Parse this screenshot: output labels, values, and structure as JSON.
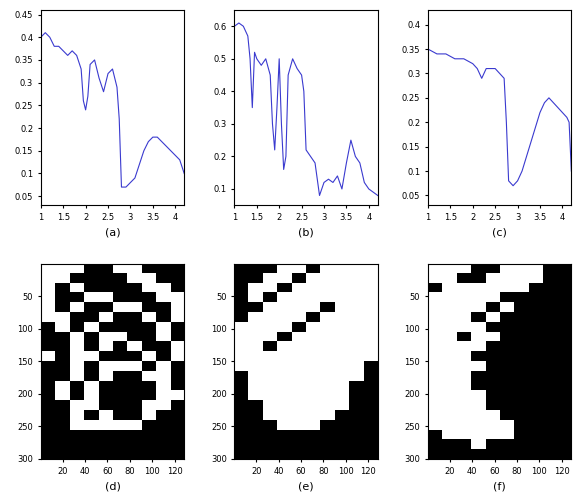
{
  "chart_data": [
    {
      "type": "line",
      "xlabel": "(a)",
      "color": "#3a3acf",
      "x": [
        1.0,
        1.1,
        1.2,
        1.3,
        1.4,
        1.5,
        1.6,
        1.7,
        1.8,
        1.9,
        1.95,
        2.0,
        2.05,
        2.1,
        2.2,
        2.3,
        2.4,
        2.5,
        2.6,
        2.7,
        2.75,
        2.8,
        2.9,
        3.0,
        3.1,
        3.2,
        3.3,
        3.4,
        3.5,
        3.6,
        3.7,
        3.8,
        3.9,
        4.0,
        4.1,
        4.2
      ],
      "values": [
        0.4,
        0.41,
        0.4,
        0.38,
        0.38,
        0.37,
        0.36,
        0.37,
        0.36,
        0.33,
        0.26,
        0.24,
        0.27,
        0.34,
        0.35,
        0.31,
        0.28,
        0.32,
        0.33,
        0.29,
        0.22,
        0.07,
        0.07,
        0.08,
        0.09,
        0.12,
        0.15,
        0.17,
        0.18,
        0.18,
        0.17,
        0.16,
        0.15,
        0.14,
        0.13,
        0.1
      ],
      "xlim": [
        1,
        4.2
      ],
      "xticks": [
        1,
        1.5,
        2,
        2.5,
        3,
        3.5,
        4
      ],
      "ylim": [
        0.03,
        0.46
      ],
      "yticks": [
        0.05,
        0.1,
        0.15,
        0.2,
        0.25,
        0.3,
        0.35,
        0.4,
        0.45
      ]
    },
    {
      "type": "line",
      "xlabel": "(b)",
      "color": "#3a3acf",
      "x": [
        1.0,
        1.1,
        1.2,
        1.3,
        1.35,
        1.4,
        1.45,
        1.5,
        1.6,
        1.7,
        1.8,
        1.85,
        1.9,
        1.95,
        2.0,
        2.05,
        2.1,
        2.15,
        2.2,
        2.3,
        2.4,
        2.5,
        2.55,
        2.6,
        2.7,
        2.8,
        2.9,
        3.0,
        3.1,
        3.2,
        3.3,
        3.4,
        3.5,
        3.6,
        3.7,
        3.8,
        3.9,
        4.0,
        4.1,
        4.2
      ],
      "values": [
        0.6,
        0.61,
        0.6,
        0.57,
        0.5,
        0.35,
        0.52,
        0.5,
        0.48,
        0.5,
        0.45,
        0.3,
        0.22,
        0.35,
        0.5,
        0.3,
        0.16,
        0.2,
        0.45,
        0.5,
        0.47,
        0.45,
        0.4,
        0.22,
        0.2,
        0.18,
        0.08,
        0.12,
        0.13,
        0.12,
        0.14,
        0.1,
        0.18,
        0.25,
        0.2,
        0.18,
        0.12,
        0.1,
        0.09,
        0.08
      ],
      "xlim": [
        1,
        4.2
      ],
      "xticks": [
        1,
        1.5,
        2,
        2.5,
        3,
        3.5,
        4
      ],
      "ylim": [
        0.05,
        0.65
      ],
      "yticks": [
        0.1,
        0.2,
        0.3,
        0.4,
        0.5,
        0.6
      ]
    },
    {
      "type": "line",
      "xlabel": "(c)",
      "color": "#3a3acf",
      "x": [
        1.0,
        1.2,
        1.4,
        1.6,
        1.8,
        2.0,
        2.1,
        2.2,
        2.3,
        2.4,
        2.5,
        2.6,
        2.7,
        2.75,
        2.8,
        2.9,
        3.0,
        3.1,
        3.2,
        3.3,
        3.4,
        3.5,
        3.6,
        3.7,
        3.8,
        3.9,
        4.0,
        4.1,
        4.15,
        4.2
      ],
      "values": [
        0.35,
        0.34,
        0.34,
        0.33,
        0.33,
        0.32,
        0.31,
        0.29,
        0.31,
        0.31,
        0.31,
        0.3,
        0.29,
        0.2,
        0.08,
        0.07,
        0.08,
        0.1,
        0.13,
        0.16,
        0.19,
        0.22,
        0.24,
        0.25,
        0.24,
        0.23,
        0.22,
        0.21,
        0.2,
        0.1
      ],
      "xlim": [
        1,
        4.2
      ],
      "xticks": [
        1,
        1.5,
        2,
        2.5,
        3,
        3.5,
        4
      ],
      "ylim": [
        0.03,
        0.43
      ],
      "yticks": [
        0.05,
        0.1,
        0.15,
        0.2,
        0.25,
        0.3,
        0.35,
        0.4
      ]
    },
    {
      "type": "heatmap",
      "xlabel": "(d)",
      "colors": [
        "#000000",
        "#ffffff"
      ],
      "xlim": [
        0.5,
        128.5
      ],
      "xticks": [
        20,
        40,
        60,
        80,
        100,
        120
      ],
      "ylim": [
        300.5,
        0.5
      ],
      "yticks": [
        50,
        100,
        150,
        200,
        250,
        300
      ],
      "cells": [
        [
          1,
          1,
          1,
          0,
          0,
          1,
          1,
          0,
          0,
          0
        ],
        [
          1,
          1,
          0,
          0,
          0,
          0,
          1,
          1,
          0,
          0
        ],
        [
          1,
          0,
          1,
          0,
          0,
          0,
          0,
          1,
          1,
          0
        ],
        [
          1,
          0,
          0,
          1,
          1,
          0,
          0,
          0,
          1,
          1
        ],
        [
          1,
          0,
          1,
          0,
          0,
          1,
          1,
          0,
          0,
          1
        ],
        [
          1,
          1,
          0,
          0,
          1,
          0,
          0,
          1,
          0,
          1
        ],
        [
          0,
          1,
          0,
          1,
          0,
          0,
          0,
          0,
          1,
          0
        ],
        [
          0,
          0,
          1,
          0,
          1,
          1,
          0,
          0,
          1,
          0
        ],
        [
          0,
          0,
          1,
          0,
          1,
          0,
          1,
          0,
          0,
          1
        ],
        [
          1,
          0,
          1,
          1,
          0,
          0,
          0,
          1,
          0,
          1
        ],
        [
          0,
          0,
          1,
          0,
          1,
          1,
          1,
          0,
          1,
          0
        ],
        [
          0,
          0,
          1,
          0,
          1,
          0,
          0,
          1,
          1,
          0
        ],
        [
          0,
          1,
          0,
          1,
          0,
          0,
          0,
          0,
          1,
          0
        ],
        [
          0,
          1,
          0,
          1,
          0,
          0,
          0,
          0,
          1,
          1
        ],
        [
          0,
          0,
          1,
          1,
          0,
          0,
          0,
          1,
          1,
          0
        ],
        [
          0,
          0,
          1,
          0,
          1,
          0,
          0,
          1,
          0,
          0
        ],
        [
          0,
          0,
          1,
          1,
          1,
          1,
          1,
          0,
          0,
          0
        ],
        [
          0,
          0,
          0,
          0,
          0,
          0,
          0,
          0,
          0,
          0
        ],
        [
          0,
          0,
          0,
          0,
          0,
          0,
          0,
          0,
          0,
          0
        ],
        [
          0,
          0,
          0,
          0,
          0,
          0,
          0,
          0,
          0,
          0
        ]
      ]
    },
    {
      "type": "heatmap",
      "xlabel": "(e)",
      "colors": [
        "#000000",
        "#ffffff"
      ],
      "xlim": [
        0.5,
        128.5
      ],
      "xticks": [
        20,
        40,
        60,
        80,
        100,
        120
      ],
      "ylim": [
        300.5,
        0.5
      ],
      "yticks": [
        50,
        100,
        150,
        200,
        250,
        300
      ],
      "cells": [
        [
          0,
          0,
          0,
          1,
          1,
          0,
          1,
          1,
          1,
          1
        ],
        [
          0,
          0,
          1,
          1,
          0,
          1,
          1,
          1,
          1,
          1
        ],
        [
          0,
          1,
          1,
          0,
          1,
          1,
          1,
          1,
          1,
          1
        ],
        [
          0,
          1,
          0,
          1,
          1,
          1,
          1,
          1,
          1,
          1
        ],
        [
          0,
          0,
          1,
          1,
          1,
          1,
          0,
          1,
          1,
          1
        ],
        [
          0,
          1,
          1,
          1,
          1,
          0,
          1,
          1,
          1,
          1
        ],
        [
          1,
          1,
          1,
          1,
          0,
          1,
          1,
          1,
          1,
          1
        ],
        [
          1,
          1,
          1,
          0,
          1,
          1,
          1,
          1,
          1,
          1
        ],
        [
          1,
          1,
          0,
          1,
          1,
          1,
          1,
          1,
          1,
          1
        ],
        [
          1,
          1,
          1,
          1,
          1,
          1,
          1,
          1,
          1,
          1
        ],
        [
          1,
          1,
          1,
          1,
          1,
          1,
          1,
          1,
          1,
          0
        ],
        [
          0,
          1,
          1,
          1,
          1,
          1,
          1,
          1,
          1,
          0
        ],
        [
          0,
          1,
          1,
          1,
          1,
          1,
          1,
          1,
          0,
          0
        ],
        [
          0,
          1,
          1,
          1,
          1,
          1,
          1,
          1,
          0,
          0
        ],
        [
          0,
          0,
          1,
          1,
          1,
          1,
          1,
          1,
          0,
          0
        ],
        [
          0,
          0,
          1,
          1,
          1,
          1,
          1,
          0,
          0,
          0
        ],
        [
          0,
          0,
          0,
          1,
          1,
          1,
          0,
          0,
          0,
          0
        ],
        [
          0,
          0,
          0,
          0,
          0,
          0,
          0,
          0,
          0,
          0
        ],
        [
          0,
          0,
          0,
          0,
          0,
          0,
          0,
          0,
          0,
          0
        ],
        [
          0,
          0,
          0,
          0,
          0,
          0,
          0,
          0,
          0,
          0
        ]
      ]
    },
    {
      "type": "heatmap",
      "xlabel": "(f)",
      "colors": [
        "#000000",
        "#ffffff"
      ],
      "xlim": [
        0.5,
        128.5
      ],
      "xticks": [
        20,
        40,
        60,
        80,
        100,
        120
      ],
      "ylim": [
        300.5,
        0.5
      ],
      "yticks": [
        50,
        100,
        150,
        200,
        250,
        300
      ],
      "cells": [
        [
          1,
          1,
          1,
          0,
          0,
          1,
          1,
          1,
          0,
          0
        ],
        [
          1,
          1,
          0,
          0,
          1,
          1,
          1,
          1,
          0,
          0
        ],
        [
          0,
          1,
          1,
          1,
          1,
          1,
          1,
          0,
          0,
          0
        ],
        [
          1,
          1,
          1,
          1,
          1,
          0,
          0,
          0,
          0,
          0
        ],
        [
          1,
          1,
          1,
          1,
          0,
          1,
          0,
          0,
          0,
          0
        ],
        [
          1,
          1,
          1,
          0,
          1,
          0,
          0,
          0,
          0,
          0
        ],
        [
          1,
          1,
          1,
          1,
          0,
          0,
          0,
          0,
          0,
          0
        ],
        [
          1,
          1,
          0,
          1,
          1,
          0,
          0,
          0,
          0,
          0
        ],
        [
          1,
          1,
          1,
          1,
          0,
          0,
          0,
          0,
          0,
          0
        ],
        [
          1,
          1,
          1,
          0,
          0,
          0,
          0,
          0,
          0,
          0
        ],
        [
          1,
          1,
          1,
          1,
          0,
          0,
          0,
          0,
          0,
          0
        ],
        [
          1,
          1,
          1,
          0,
          0,
          0,
          0,
          0,
          0,
          0
        ],
        [
          1,
          1,
          1,
          0,
          0,
          0,
          0,
          0,
          0,
          0
        ],
        [
          1,
          1,
          1,
          1,
          0,
          0,
          0,
          0,
          0,
          0
        ],
        [
          1,
          1,
          1,
          1,
          0,
          0,
          0,
          0,
          0,
          0
        ],
        [
          1,
          1,
          1,
          1,
          1,
          0,
          0,
          0,
          0,
          0
        ],
        [
          1,
          1,
          1,
          1,
          1,
          1,
          0,
          0,
          0,
          0
        ],
        [
          0,
          1,
          1,
          1,
          1,
          1,
          0,
          0,
          0,
          0
        ],
        [
          0,
          0,
          0,
          1,
          0,
          0,
          0,
          0,
          0,
          0
        ],
        [
          0,
          0,
          0,
          0,
          0,
          0,
          0,
          0,
          0,
          0
        ]
      ]
    }
  ]
}
